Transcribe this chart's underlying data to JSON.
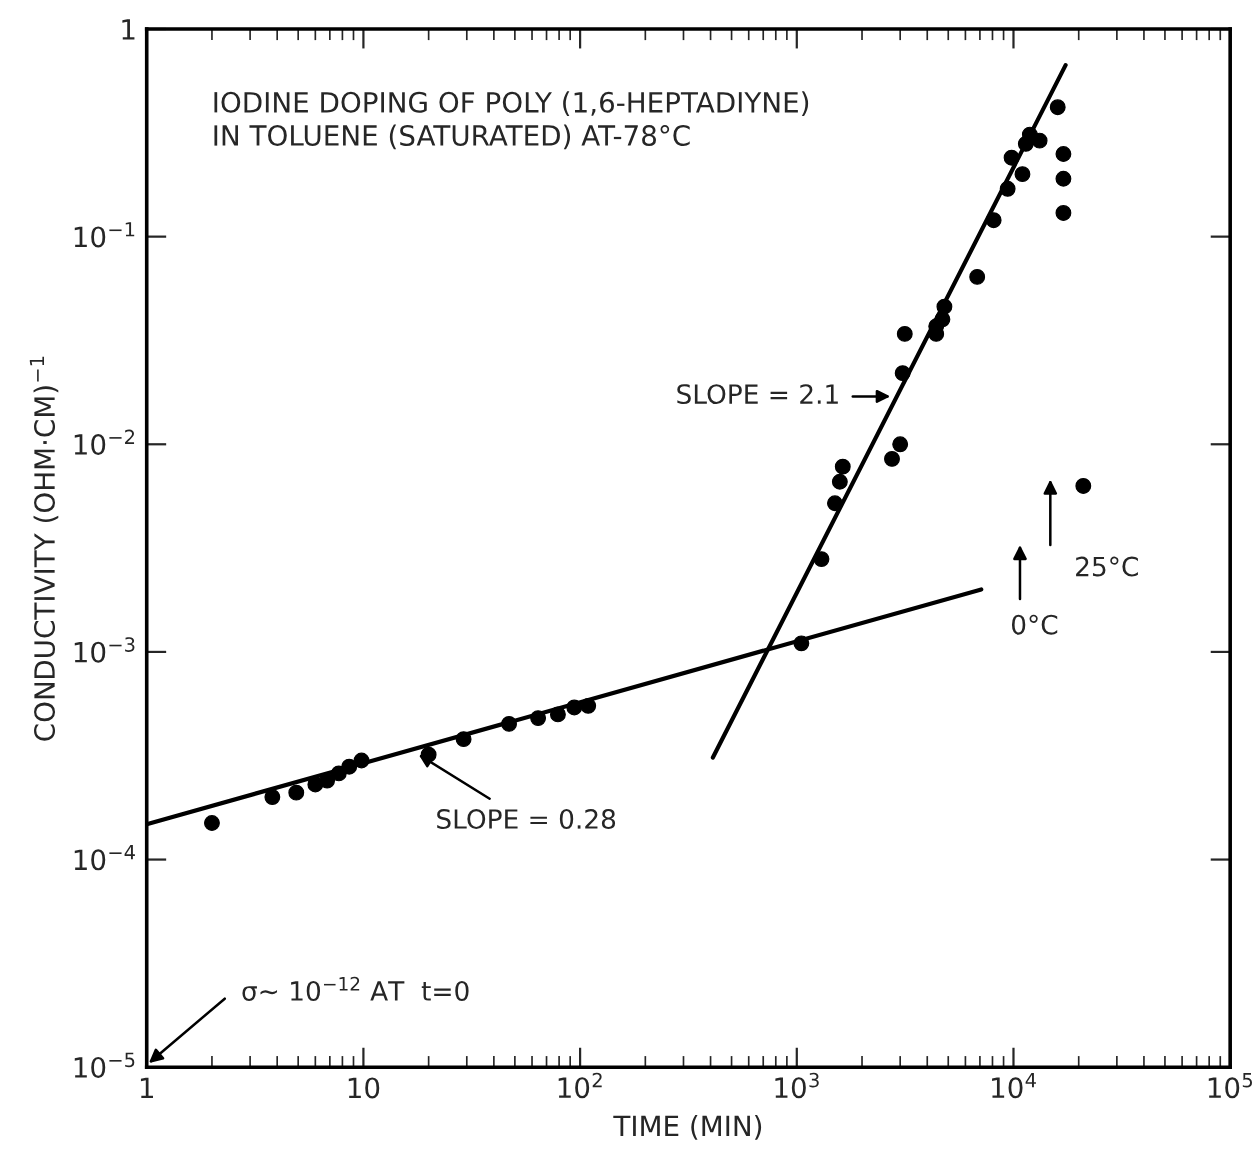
{
  "chart_data": {
    "type": "scatter",
    "title": "IODINE DOPING OF POLY (1,6-HEPTADIYNE)\nIN TOLUENE (SATURATED) AT-78°C",
    "xlabel": "TIME (MIN)",
    "ylabel": "CONDUCTIVITY (OHM·CM)$^{−1}$",
    "log": "xy",
    "xlim": [
      1,
      100000
    ],
    "ylim": [
      1e-05,
      1
    ],
    "xticks": [
      1,
      10,
      {
        "value": 100,
        "label": "10$^{2}$"
      },
      {
        "value": 1000,
        "label": "10$^{3}$"
      },
      {
        "value": 10000,
        "label": "10$^{4}$"
      },
      {
        "value": 100000,
        "label": "10$^{5}$"
      }
    ],
    "yticks": [
      {
        "value": 1e-05,
        "label": "10$^{−5}$"
      },
      {
        "value": 0.0001,
        "label": "10$^{−4}$"
      },
      {
        "value": 0.001,
        "label": "10$^{−3}$"
      },
      {
        "value": 0.01,
        "label": "10$^{−2}$"
      },
      {
        "value": 0.1,
        "label": "10$^{−1}$"
      },
      1
    ],
    "grid": false,
    "legend": false,
    "series": [
      {
        "marker": "circle",
        "color": "#000000",
        "x": [
          2.0,
          3.8,
          4.9,
          6.0,
          6.8,
          7.7,
          8.6,
          9.8,
          20,
          29,
          47,
          64,
          79,
          94,
          109,
          1050,
          1300,
          1500,
          1580,
          1630,
          2750,
          3000,
          3080,
          3150,
          4400,
          4400,
          4700,
          4800,
          6800,
          8100,
          9400,
          9800,
          11000,
          11400,
          11900,
          13200,
          16000,
          17000,
          17000,
          17000,
          21000
        ],
        "values": [
          0.00015,
          0.0002,
          0.00021,
          0.00023,
          0.00024,
          0.00026,
          0.00028,
          0.0003,
          0.00032,
          0.00038,
          0.00045,
          0.00048,
          0.0005,
          0.00054,
          0.00055,
          0.0011,
          0.0028,
          0.0052,
          0.0066,
          0.0078,
          0.0085,
          0.01,
          0.022,
          0.034,
          0.034,
          0.037,
          0.04,
          0.046,
          0.064,
          0.12,
          0.17,
          0.24,
          0.2,
          0.28,
          0.31,
          0.29,
          0.42,
          0.25,
          0.19,
          0.13,
          0.0063
        ]
      },
      {
        "type": "line",
        "marker": "none",
        "color": "#000000",
        "x": [
          1,
          7100
        ],
        "values": [
          0.000148,
          0.002
        ]
      },
      {
        "type": "line",
        "marker": "none",
        "color": "#000000",
        "x": [
          410,
          17400
        ],
        "values": [
          0.00031,
          0.67
        ]
      }
    ],
    "annotations": [
      {
        "text": "SLOPE = 2.1",
        "x": 2700,
        "y": 0.017
      },
      {
        "text": "SLOPE = 0.28",
        "x": 18,
        "y": 0.00032
      },
      "σ~ 10$^{−12}$ AT  t=0",
      "25°C",
      "0°C"
    ]
  }
}
